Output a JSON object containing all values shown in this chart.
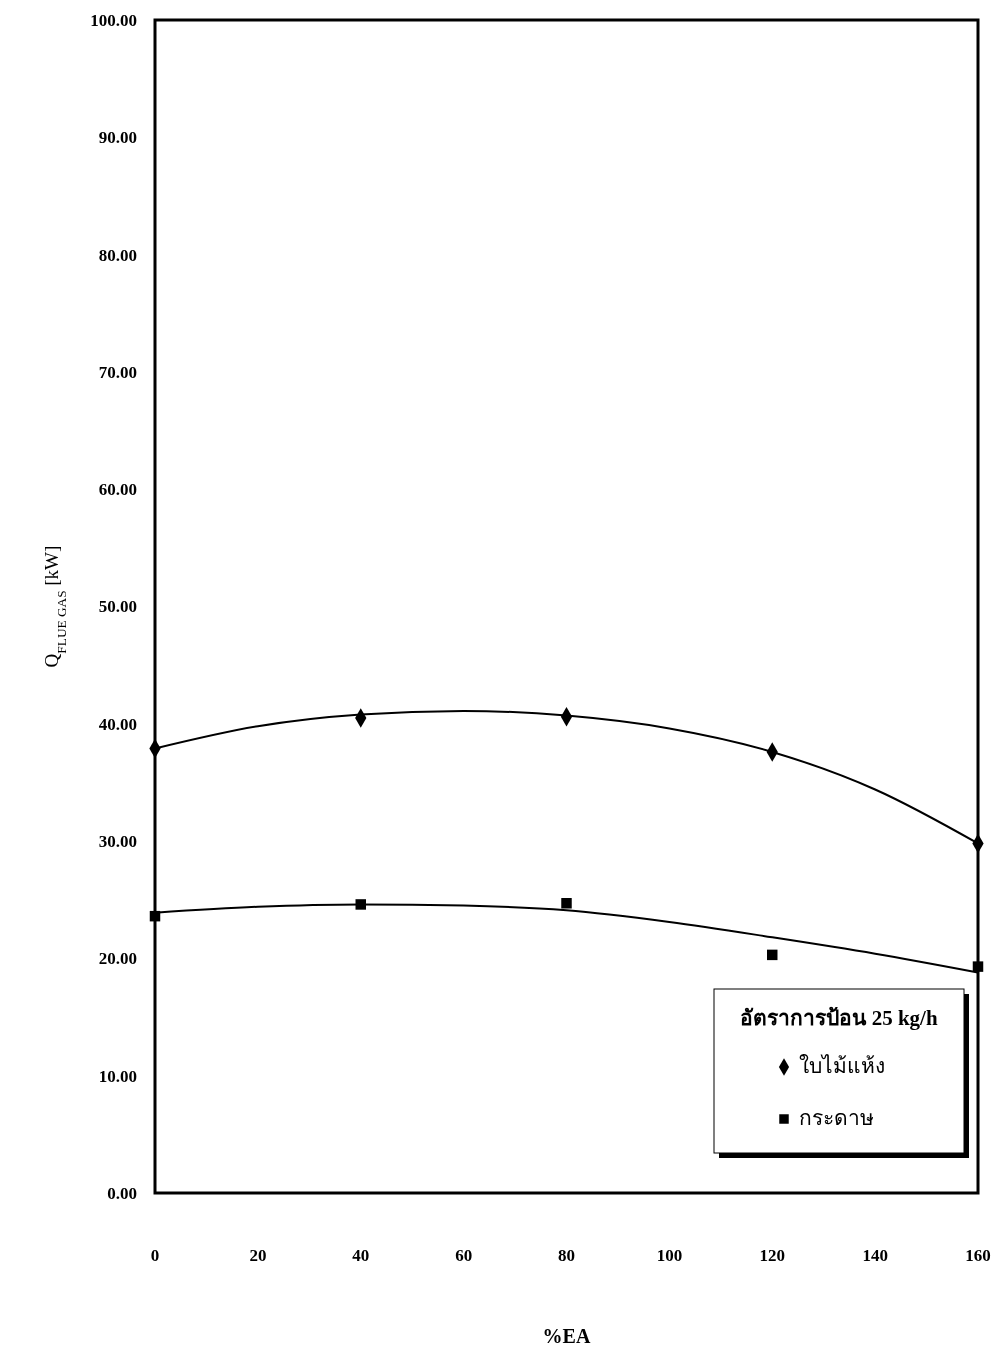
{
  "chart_data": {
    "type": "scatter",
    "xlabel": "%EA",
    "ylabel": "Q$_{FLUE GAS}$ [kW]",
    "legend_title": "อัตราการป้อน 25 kg/h",
    "legend": "bottom right",
    "grid": false,
    "xlim": [
      0,
      160
    ],
    "xticks": [
      0,
      20,
      40,
      60,
      80,
      100,
      120,
      140,
      160
    ],
    "ylim": [
      0,
      100
    ],
    "yticks": [
      {
        "value": 0,
        "label": "0.00"
      },
      {
        "value": 10,
        "label": "10.00"
      },
      {
        "value": 20,
        "label": "20.00"
      },
      {
        "value": 30,
        "label": "30.00"
      },
      {
        "value": 40,
        "label": "40.00"
      },
      {
        "value": 50,
        "label": "50.00"
      },
      {
        "value": 60,
        "label": "60.00"
      },
      {
        "value": 70,
        "label": "70.00"
      },
      {
        "value": 80,
        "label": "80.00"
      },
      {
        "value": 90,
        "label": "90.00"
      },
      {
        "value": 100,
        "label": "100.00"
      }
    ],
    "series": [
      {
        "name": "ใบไม้แห้ง",
        "marker": "diamond",
        "color": "#000000",
        "x": [
          0,
          40,
          80,
          120,
          160
        ],
        "values": [
          37.9,
          40.5,
          40.6,
          37.6,
          29.8
        ]
      },
      {
        "name": "กระดาษ",
        "marker": "square",
        "color": "#000000",
        "x": [
          0,
          40,
          80,
          120,
          160
        ],
        "values": [
          23.6,
          24.6,
          24.7,
          20.3,
          19.3
        ]
      },
      {
        "type": "line",
        "marker": "none",
        "color": "#000000",
        "x": [
          0,
          20,
          40,
          60,
          80,
          100,
          120,
          140,
          160
        ],
        "values": [
          37.9,
          39.8,
          40.8,
          41.1,
          40.7,
          39.6,
          37.6,
          34.4,
          29.8
        ]
      },
      {
        "type": "line",
        "marker": "none",
        "color": "#000000",
        "x": [
          0,
          20,
          40,
          60,
          80,
          100,
          120,
          140,
          160
        ],
        "values": [
          23.9,
          24.4,
          24.6,
          24.5,
          24.1,
          23.1,
          21.8,
          20.4,
          18.8
        ]
      }
    ]
  }
}
